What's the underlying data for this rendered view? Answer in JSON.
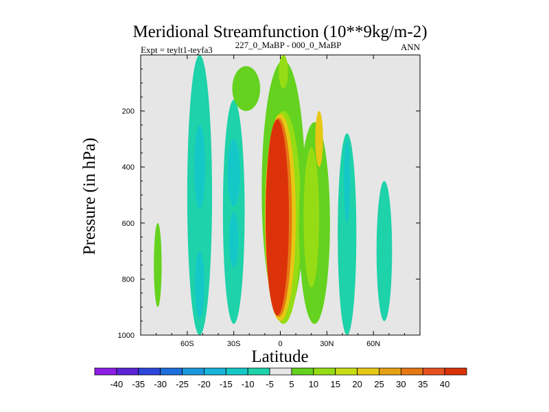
{
  "chart_data": {
    "type": "contour",
    "title": "Meridional Streamfunction (10**9kg/m-2)",
    "subtitle_left": "Expt = teylt1-teyfa3",
    "subtitle_center": "227_0_MaBP - 000_0_MaBP",
    "subtitle_right": "ANN",
    "xlabel": "Latitude",
    "ylabel": "Pressure (in hPa)",
    "xlim": [
      -90,
      90
    ],
    "ylim": [
      1000,
      0
    ],
    "x_ticks": [
      {
        "value": -60,
        "label": "60S"
      },
      {
        "value": -30,
        "label": "30S"
      },
      {
        "value": 0,
        "label": "0"
      },
      {
        "value": 30,
        "label": "30N"
      },
      {
        "value": 60,
        "label": "60N"
      }
    ],
    "y_ticks": [
      {
        "value": 200,
        "label": "200"
      },
      {
        "value": 400,
        "label": "400"
      },
      {
        "value": 600,
        "label": "600"
      },
      {
        "value": 800,
        "label": "800"
      },
      {
        "value": 1000,
        "label": "1000"
      }
    ],
    "colorbar": {
      "labels": [
        "-40",
        "-35",
        "-30",
        "-25",
        "-20",
        "-15",
        "-10",
        "-5",
        "5",
        "10",
        "15",
        "20",
        "25",
        "30",
        "35",
        "40"
      ],
      "colors": [
        "#8c1ee6",
        "#5a23d6",
        "#2d46dc",
        "#1e6edc",
        "#1a96dc",
        "#18b4dc",
        "#14c8c8",
        "#1ed2aa",
        "#e6e6e6",
        "#64d21e",
        "#96dc14",
        "#c8dc14",
        "#e6c814",
        "#e6a014",
        "#e67814",
        "#e6501e",
        "#dc320a"
      ]
    },
    "fill_levels": {
      "neutral": "#e6e6e6",
      "cyan": "#1ed2aa",
      "teal": "#14c8c8",
      "light_blue": "#18b4dc",
      "green": "#64d21e",
      "lime": "#96dc14",
      "yellow_green": "#c8dc14",
      "yellow": "#e6c814",
      "orange": "#e6a014",
      "dark_orange": "#e67814",
      "red_orange": "#e6501e",
      "red": "#dc320a"
    },
    "regions": [
      {
        "level": "green",
        "shape": "ellipse",
        "lat": -79,
        "lat_r": 2.5,
        "p": 750,
        "p_r": 150
      },
      {
        "level": "cyan",
        "shape": "ellipse",
        "lat": -52,
        "lat_r": 8,
        "p": 500,
        "p_r": 500
      },
      {
        "level": "teal",
        "shape": "ellipse",
        "lat": -52,
        "lat_r": 3,
        "p": 820,
        "p_r": 120
      },
      {
        "level": "teal",
        "shape": "ellipse",
        "lat": -52,
        "lat_r": 3.5,
        "p": 400,
        "p_r": 150
      },
      {
        "level": "cyan",
        "shape": "ellipse",
        "lat": -30,
        "lat_r": 7,
        "p": 560,
        "p_r": 400
      },
      {
        "level": "teal",
        "shape": "ellipse",
        "lat": -30,
        "lat_r": 4,
        "p": 420,
        "p_r": 120
      },
      {
        "level": "teal",
        "shape": "ellipse",
        "lat": -30,
        "lat_r": 3,
        "p": 660,
        "p_r": 100
      },
      {
        "level": "green",
        "shape": "ellipse",
        "lat": -22,
        "lat_r": 9,
        "p": 120,
        "p_r": 80
      },
      {
        "level": "green",
        "shape": "ellipse",
        "lat": 2,
        "lat_r": 14,
        "p": 480,
        "p_r": 460
      },
      {
        "level": "lime",
        "shape": "ellipse",
        "lat": 2,
        "lat_r": 3,
        "p": 60,
        "p_r": 60
      },
      {
        "level": "lime",
        "shape": "ellipse",
        "lat": 2,
        "lat_r": 11.5,
        "p": 580,
        "p_r": 380
      },
      {
        "level": "yellow",
        "shape": "ellipse",
        "lat": 0,
        "lat_r": 10,
        "p": 580,
        "p_r": 370
      },
      {
        "level": "dark_orange",
        "shape": "ellipse",
        "lat": -1,
        "lat_r": 8.5,
        "p": 580,
        "p_r": 355
      },
      {
        "level": "red",
        "shape": "ellipse",
        "lat": -2,
        "lat_r": 7.5,
        "p": 580,
        "p_r": 350
      },
      {
        "level": "green",
        "shape": "ellipse",
        "lat": 22,
        "lat_r": 10,
        "p": 600,
        "p_r": 360
      },
      {
        "level": "lime",
        "shape": "ellipse",
        "lat": 20,
        "lat_r": 5,
        "p": 580,
        "p_r": 250
      },
      {
        "level": "yellow",
        "shape": "ellipse",
        "lat": 25,
        "lat_r": 2.5,
        "p": 300,
        "p_r": 100
      },
      {
        "level": "cyan",
        "shape": "ellipse",
        "lat": 43,
        "lat_r": 6,
        "p": 640,
        "p_r": 360
      },
      {
        "level": "teal",
        "shape": "ellipse",
        "lat": 43,
        "lat_r": 2,
        "p": 450,
        "p_r": 150
      },
      {
        "level": "cyan",
        "shape": "ellipse",
        "lat": 67,
        "lat_r": 5,
        "p": 700,
        "p_r": 250
      }
    ]
  }
}
